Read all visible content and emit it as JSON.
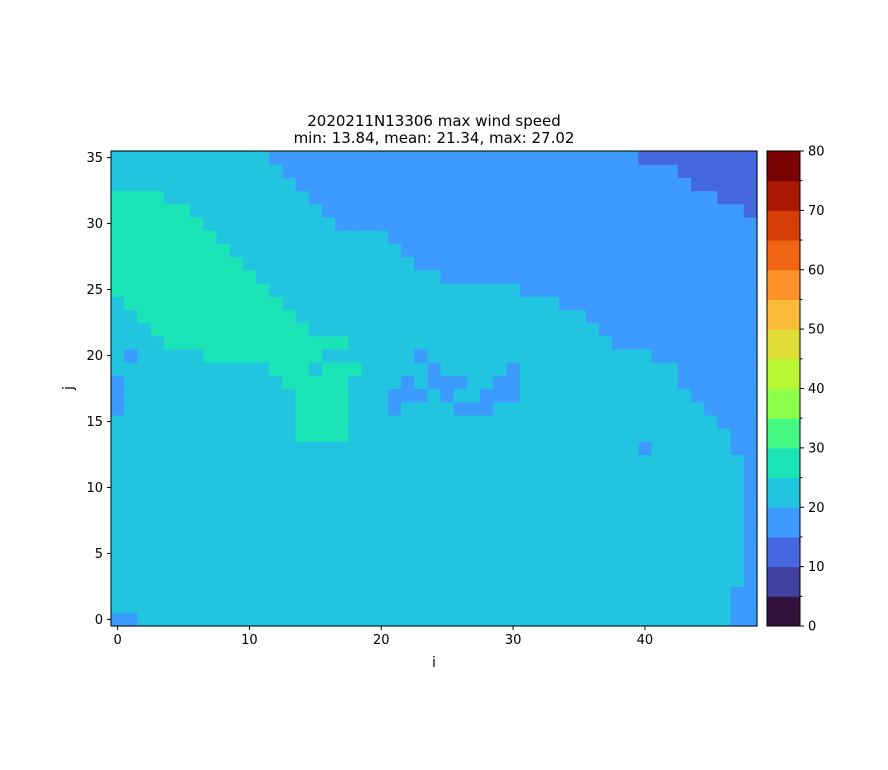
{
  "chart_data": {
    "type": "heatmap",
    "title": "2020211N13306 max wind speed",
    "subtitle": "min: 13.84, mean: 21.34, max: 27.02",
    "xlabel": "i",
    "ylabel": "j",
    "x_ticks": [
      0,
      10,
      20,
      30,
      40
    ],
    "y_ticks": [
      0,
      5,
      10,
      15,
      20,
      25,
      30,
      35
    ],
    "xlim": [
      -0.5,
      48.5
    ],
    "ylim": [
      -0.5,
      35.5
    ],
    "grid": false,
    "n_cols": 49,
    "n_rows": 36,
    "colorbar": {
      "ticks": [
        0,
        10,
        20,
        30,
        40,
        50,
        60,
        70,
        80
      ],
      "range": [
        0,
        80
      ],
      "bin_width": 5,
      "colors": [
        "#30123b",
        "#4040a0",
        "#4568e0",
        "#3d9afe",
        "#22c5e0",
        "#1ae4b6",
        "#46f884",
        "#8cff48",
        "#b9f636",
        "#e1dd37",
        "#fabb39",
        "#fe922a",
        "#f16413",
        "#d53d07",
        "#a81802",
        "#7a0403"
      ]
    },
    "bin_values": {
      "1": 12.5,
      "2": 17.5,
      "3": 22.5,
      "4": 27.5
    },
    "class_key": "1 = 10-15 bin, 2 = 15-20 bin, 3 = 20-25 bin, 4 = 25-30 bin",
    "grid_rows_top_to_bottom": [
      "3333333333332222222222222222222222222222111111111",
      "3333333333333222222222222222222222222222222111111",
      "3333333333333322222222222222222222222222222211111",
      "4444333333333332222222222222222222222222222222111",
      "4444443333333333222222222222222222222222222222221",
      "4444444333333333322222222222222222222222222222222",
      "4444444433333333333332222222222222222222222222222",
      "4444444443333333333333222222222222222222222222222",
      "4444444444333333333333322222222222222222222222222",
      "4444444444433333333333333222222222222222222222222",
      "4444444444443333333333333333333222222222222222222",
      "3444444444444333333333333333333333222222222222222",
      "3344444444444433333333333333333333332222222222222",
      "3334444444444443333333333333333333333222222222222",
      "3333444444444444333333333333333333333322222222222",
      "3233333444444444333333333333333333333333322222222",
      "3333333333334444444333333333333333333333333222222",
      "3333333333333444443333333333333333333333333222222",
      "2333333333333344443333333333333333333333333322222",
      "2333333333333344443333333333333333333333333332222",
      "3333333333333344443333333333333333333333333333222",
      "3333333333333344443333333333333333333333333333322",
      "3333333333333333333333333333333333333333333333322",
      "3333333333333333333333333333333333333333333333332",
      "3333333333333333333333333333333333333333333333332",
      "3333333333333333333333333333333333333333333333332",
      "3333333333333333333333333333333333333333333333332",
      "3333333333333333333333333333333333333333333333332",
      "3333333333333333333333333333333333333333333333332",
      "3333333333333333333333333333333333333333333333332",
      "3333333333333333333333333333333333333333333333332",
      "3333333333333333333333333333333333333333333333332",
      "3333333333333333333333333333333333333333333333332",
      "3333333333333333333333333333333333333333333333322",
      "3333333333333333333333333333333333333333333333322",
      "2233333333333333333333333333333333333333333333322"
    ],
    "cell_overrides": [
      {
        "i": 1,
        "j": 20,
        "value": 2
      },
      {
        "i": 0,
        "j": 18,
        "value": 2
      },
      {
        "i": 0,
        "j": 17,
        "value": 2
      },
      {
        "i": 15,
        "j": 19,
        "value": 3
      },
      {
        "i": 15,
        "j": 15,
        "value": 4
      },
      {
        "i": 15,
        "j": 14,
        "value": 4
      },
      {
        "i": 16,
        "j": 14,
        "value": 4
      },
      {
        "i": 17,
        "j": 14,
        "value": 4
      },
      {
        "i": 16,
        "j": 21,
        "value": 4
      },
      {
        "i": 17,
        "j": 21,
        "value": 4
      },
      {
        "i": 23,
        "j": 20,
        "value": 2
      },
      {
        "i": 24,
        "j": 19,
        "value": 2
      },
      {
        "i": 30,
        "j": 19,
        "value": 2
      },
      {
        "i": 22,
        "j": 18,
        "value": 2
      },
      {
        "i": 24,
        "j": 18,
        "value": 2
      },
      {
        "i": 25,
        "j": 18,
        "value": 2
      },
      {
        "i": 26,
        "j": 18,
        "value": 2
      },
      {
        "i": 29,
        "j": 18,
        "value": 2
      },
      {
        "i": 30,
        "j": 18,
        "value": 2
      },
      {
        "i": 21,
        "j": 17,
        "value": 2
      },
      {
        "i": 22,
        "j": 17,
        "value": 2
      },
      {
        "i": 23,
        "j": 17,
        "value": 2
      },
      {
        "i": 25,
        "j": 17,
        "value": 2
      },
      {
        "i": 28,
        "j": 17,
        "value": 2
      },
      {
        "i": 29,
        "j": 17,
        "value": 2
      },
      {
        "i": 30,
        "j": 17,
        "value": 2
      },
      {
        "i": 21,
        "j": 16,
        "value": 2
      },
      {
        "i": 26,
        "j": 16,
        "value": 2
      },
      {
        "i": 27,
        "j": 16,
        "value": 2
      },
      {
        "i": 28,
        "j": 16,
        "value": 2
      },
      {
        "i": 40,
        "j": 13,
        "value": 2
      },
      {
        "i": 0,
        "j": 0,
        "value": 2
      },
      {
        "i": 1,
        "j": 0,
        "value": 2
      }
    ]
  }
}
